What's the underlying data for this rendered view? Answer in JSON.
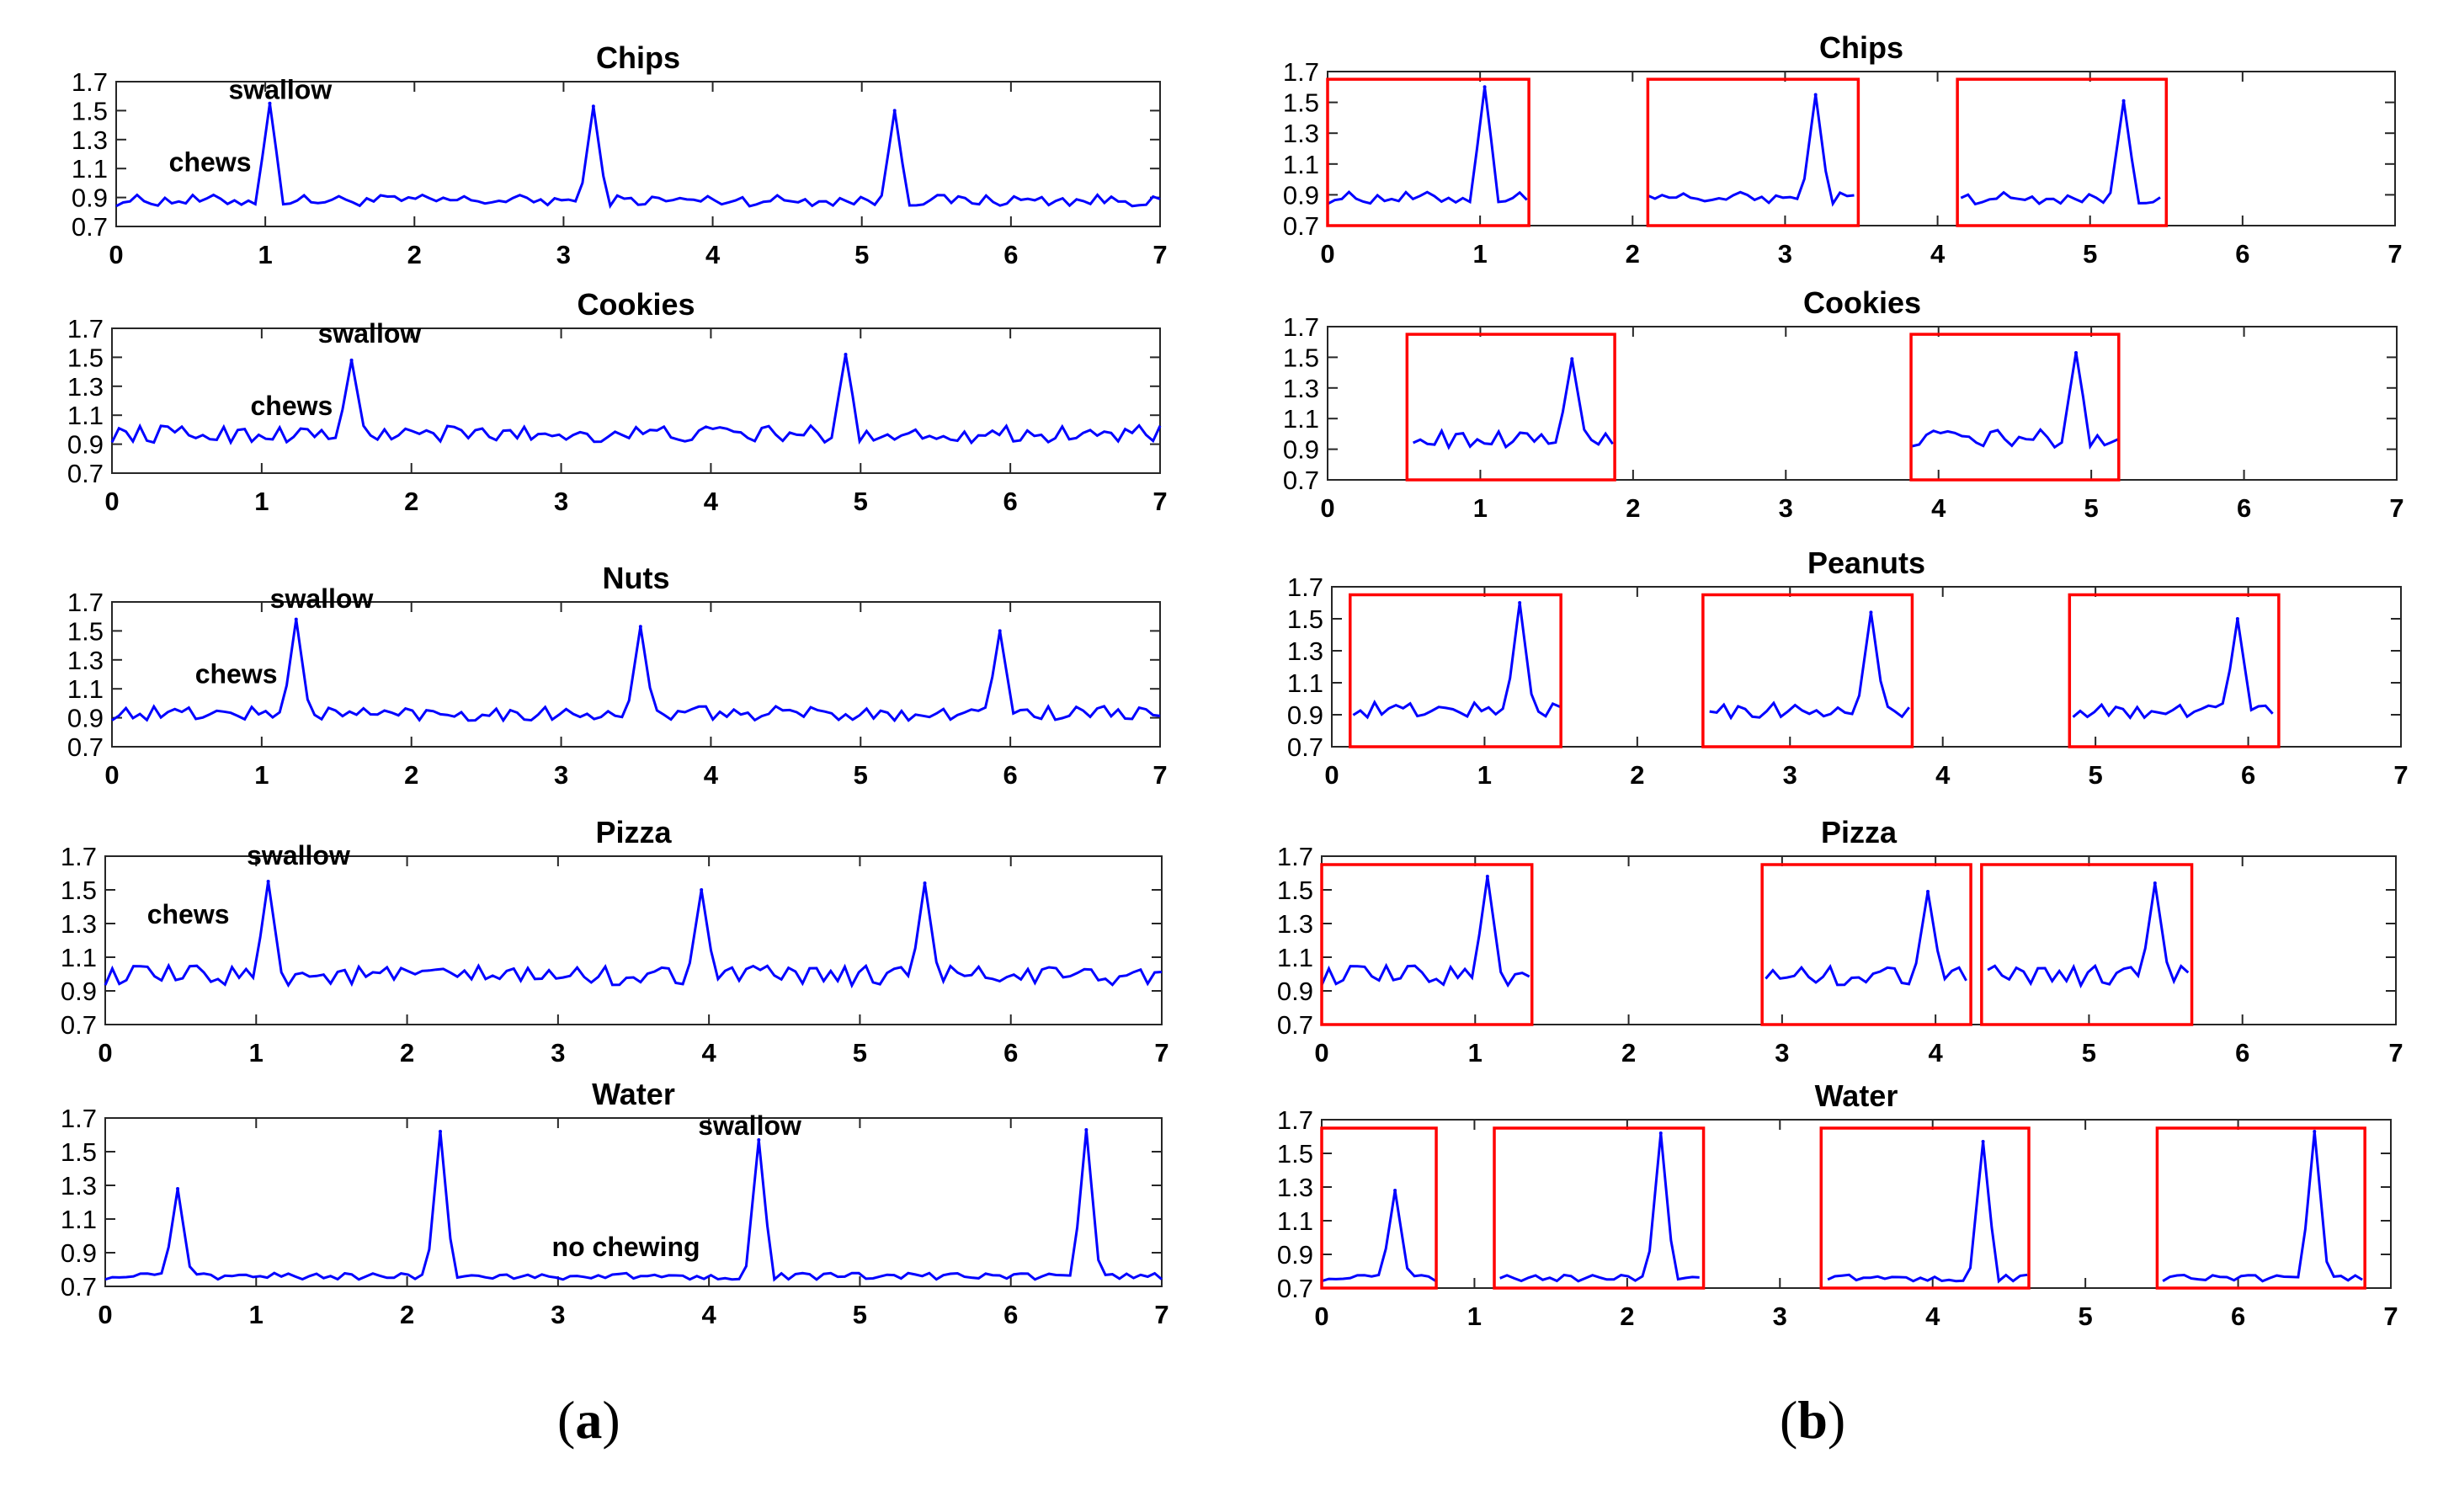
{
  "figure_labels": {
    "a": "a",
    "b": "b",
    "open": "(",
    "close": ")"
  },
  "colors": {
    "signal": "#0000ff",
    "window": "#ff0000",
    "axis": "#262626",
    "text": "#000000"
  },
  "chart_data": [
    {
      "panel": "a",
      "type": "line",
      "title": "Chips",
      "xlim": [
        0,
        7
      ],
      "ylim": [
        0.7,
        1.7
      ],
      "xticks": [
        "0",
        "1",
        "2",
        "3",
        "4",
        "5",
        "6",
        "7"
      ],
      "yticks": [
        "0.7",
        "0.9",
        "1.1",
        "1.3",
        "1.5",
        "1.7"
      ],
      "peaks": [
        {
          "x": 1.03,
          "y": 1.55
        },
        {
          "x": 3.2,
          "y": 1.53
        },
        {
          "x": 5.22,
          "y": 1.5
        }
      ],
      "baseline": 0.88,
      "noise": 0.04,
      "annotations": [
        {
          "text": "swallow",
          "x": 1.1,
          "y": 1.58
        },
        {
          "text": "chews",
          "x": 0.63,
          "y": 1.08
        }
      ],
      "windows": []
    },
    {
      "panel": "a",
      "type": "line",
      "title": "Cookies",
      "xlim": [
        0,
        7
      ],
      "ylim": [
        0.7,
        1.7
      ],
      "xticks": [
        "0",
        "1",
        "2",
        "3",
        "4",
        "5",
        "6",
        "7"
      ],
      "yticks": [
        "0.7",
        "0.9",
        "1.1",
        "1.3",
        "1.5",
        "1.7"
      ],
      "peaks": [
        {
          "x": 1.6,
          "y": 1.48
        },
        {
          "x": 4.9,
          "y": 1.52
        }
      ],
      "baseline": 0.97,
      "noise": 0.06,
      "annotations": [
        {
          "text": "swallow",
          "x": 1.72,
          "y": 1.6
        },
        {
          "text": "chews",
          "x": 1.2,
          "y": 1.1
        }
      ],
      "windows": []
    },
    {
      "panel": "a",
      "type": "line",
      "title": "Nuts",
      "xlim": [
        0,
        7
      ],
      "ylim": [
        0.7,
        1.7
      ],
      "xticks": [
        "0",
        "1",
        "2",
        "3",
        "4",
        "5",
        "6",
        "7"
      ],
      "yticks": [
        "0.7",
        "0.9",
        "1.1",
        "1.3",
        "1.5",
        "1.7"
      ],
      "peaks": [
        {
          "x": 1.23,
          "y": 1.58
        },
        {
          "x": 3.53,
          "y": 1.53
        },
        {
          "x": 5.93,
          "y": 1.5
        }
      ],
      "baseline": 0.93,
      "noise": 0.05,
      "annotations": [
        {
          "text": "swallow",
          "x": 1.4,
          "y": 1.66
        },
        {
          "text": "chews",
          "x": 0.83,
          "y": 1.14
        }
      ],
      "windows": []
    },
    {
      "panel": "a",
      "type": "line",
      "title": "Pizza",
      "xlim": [
        0,
        7
      ],
      "ylim": [
        0.7,
        1.7
      ],
      "xticks": [
        "0",
        "1",
        "2",
        "3",
        "4",
        "5",
        "6",
        "7"
      ],
      "yticks": [
        "0.7",
        "0.9",
        "1.1",
        "1.3",
        "1.5",
        "1.7"
      ],
      "peaks": [
        {
          "x": 1.08,
          "y": 1.55
        },
        {
          "x": 3.95,
          "y": 1.5
        },
        {
          "x": 5.43,
          "y": 1.54
        }
      ],
      "baseline": 0.99,
      "noise": 0.06,
      "annotations": [
        {
          "text": "swallow",
          "x": 1.28,
          "y": 1.65
        },
        {
          "text": "chews",
          "x": 0.55,
          "y": 1.3
        }
      ],
      "windows": []
    },
    {
      "panel": "a",
      "type": "line",
      "title": "Water",
      "xlim": [
        0,
        7
      ],
      "ylim": [
        0.7,
        1.7
      ],
      "xticks": [
        "0",
        "1",
        "2",
        "3",
        "4",
        "5",
        "6",
        "7"
      ],
      "yticks": [
        "0.7",
        "0.9",
        "1.1",
        "1.3",
        "1.5",
        "1.7"
      ],
      "peaks": [
        {
          "x": 0.48,
          "y": 1.28
        },
        {
          "x": 2.22,
          "y": 1.62
        },
        {
          "x": 4.33,
          "y": 1.57
        },
        {
          "x": 6.5,
          "y": 1.63
        }
      ],
      "baseline": 0.76,
      "noise": 0.02,
      "annotations": [
        {
          "text": "swallow",
          "x": 4.27,
          "y": 1.6
        },
        {
          "text": "no chewing",
          "x": 3.45,
          "y": 0.88
        }
      ],
      "windows": []
    },
    {
      "panel": "b",
      "type": "line",
      "title": "Chips",
      "xlim": [
        0,
        7
      ],
      "ylim": [
        0.7,
        1.7
      ],
      "xticks": [
        "0",
        "1",
        "2",
        "3",
        "4",
        "5",
        "6",
        "7"
      ],
      "yticks": [
        "0.7",
        "0.9",
        "1.1",
        "1.3",
        "1.5",
        "1.7"
      ],
      "peaks": [
        {
          "x": 1.03,
          "y": 1.6
        },
        {
          "x": 3.2,
          "y": 1.55
        },
        {
          "x": 5.22,
          "y": 1.51
        }
      ],
      "baseline": 0.88,
      "noise": 0.04,
      "annotations": [],
      "windows": [
        {
          "start": 0.0,
          "end": 1.32
        },
        {
          "start": 2.1,
          "end": 3.48
        },
        {
          "start": 4.13,
          "end": 5.5
        }
      ]
    },
    {
      "panel": "b",
      "type": "line",
      "title": "Cookies",
      "xlim": [
        0,
        7
      ],
      "ylim": [
        0.7,
        1.7
      ],
      "xticks": [
        "0",
        "1",
        "2",
        "3",
        "4",
        "5",
        "6",
        "7"
      ],
      "yticks": [
        "0.7",
        "0.9",
        "1.1",
        "1.3",
        "1.5",
        "1.7"
      ],
      "peaks": [
        {
          "x": 1.6,
          "y": 1.49
        },
        {
          "x": 4.9,
          "y": 1.53
        }
      ],
      "baseline": 0.97,
      "noise": 0.06,
      "annotations": [],
      "windows": [
        {
          "start": 0.52,
          "end": 1.88
        },
        {
          "start": 3.82,
          "end": 5.18
        }
      ]
    },
    {
      "panel": "b",
      "type": "line",
      "title": "Peanuts",
      "xlim": [
        0,
        7
      ],
      "ylim": [
        0.7,
        1.7
      ],
      "xticks": [
        "0",
        "1",
        "2",
        "3",
        "4",
        "5",
        "6",
        "7"
      ],
      "yticks": [
        "0.7",
        "0.9",
        "1.1",
        "1.3",
        "1.5",
        "1.7"
      ],
      "peaks": [
        {
          "x": 1.23,
          "y": 1.6
        },
        {
          "x": 3.53,
          "y": 1.54
        },
        {
          "x": 5.93,
          "y": 1.5
        }
      ],
      "baseline": 0.93,
      "noise": 0.05,
      "annotations": [],
      "windows": [
        {
          "start": 0.12,
          "end": 1.5
        },
        {
          "start": 2.43,
          "end": 3.8
        },
        {
          "start": 4.83,
          "end": 6.2
        }
      ]
    },
    {
      "panel": "b",
      "type": "line",
      "title": "Pizza",
      "xlim": [
        0,
        7
      ],
      "ylim": [
        0.7,
        1.7
      ],
      "xticks": [
        "0",
        "1",
        "2",
        "3",
        "4",
        "5",
        "6",
        "7"
      ],
      "yticks": [
        "0.7",
        "0.9",
        "1.1",
        "1.3",
        "1.5",
        "1.7"
      ],
      "peaks": [
        {
          "x": 1.08,
          "y": 1.58
        },
        {
          "x": 3.95,
          "y": 1.49
        },
        {
          "x": 5.43,
          "y": 1.54
        }
      ],
      "baseline": 0.99,
      "noise": 0.06,
      "annotations": [],
      "windows": [
        {
          "start": 0.0,
          "end": 1.37
        },
        {
          "start": 2.87,
          "end": 4.23
        },
        {
          "start": 4.3,
          "end": 5.67
        }
      ]
    },
    {
      "panel": "b",
      "type": "line",
      "title": "Water",
      "xlim": [
        0,
        7
      ],
      "ylim": [
        0.7,
        1.7
      ],
      "xticks": [
        "0",
        "1",
        "2",
        "3",
        "4",
        "5",
        "6",
        "7"
      ],
      "yticks": [
        "0.7",
        "0.9",
        "1.1",
        "1.3",
        "1.5",
        "1.7"
      ],
      "peaks": [
        {
          "x": 0.48,
          "y": 1.28
        },
        {
          "x": 2.22,
          "y": 1.62
        },
        {
          "x": 4.33,
          "y": 1.57
        },
        {
          "x": 6.5,
          "y": 1.63
        }
      ],
      "baseline": 0.76,
      "noise": 0.02,
      "annotations": [],
      "windows": [
        {
          "start": 0.0,
          "end": 0.75
        },
        {
          "start": 1.13,
          "end": 2.5
        },
        {
          "start": 3.27,
          "end": 4.63
        },
        {
          "start": 5.47,
          "end": 6.83
        }
      ]
    }
  ]
}
